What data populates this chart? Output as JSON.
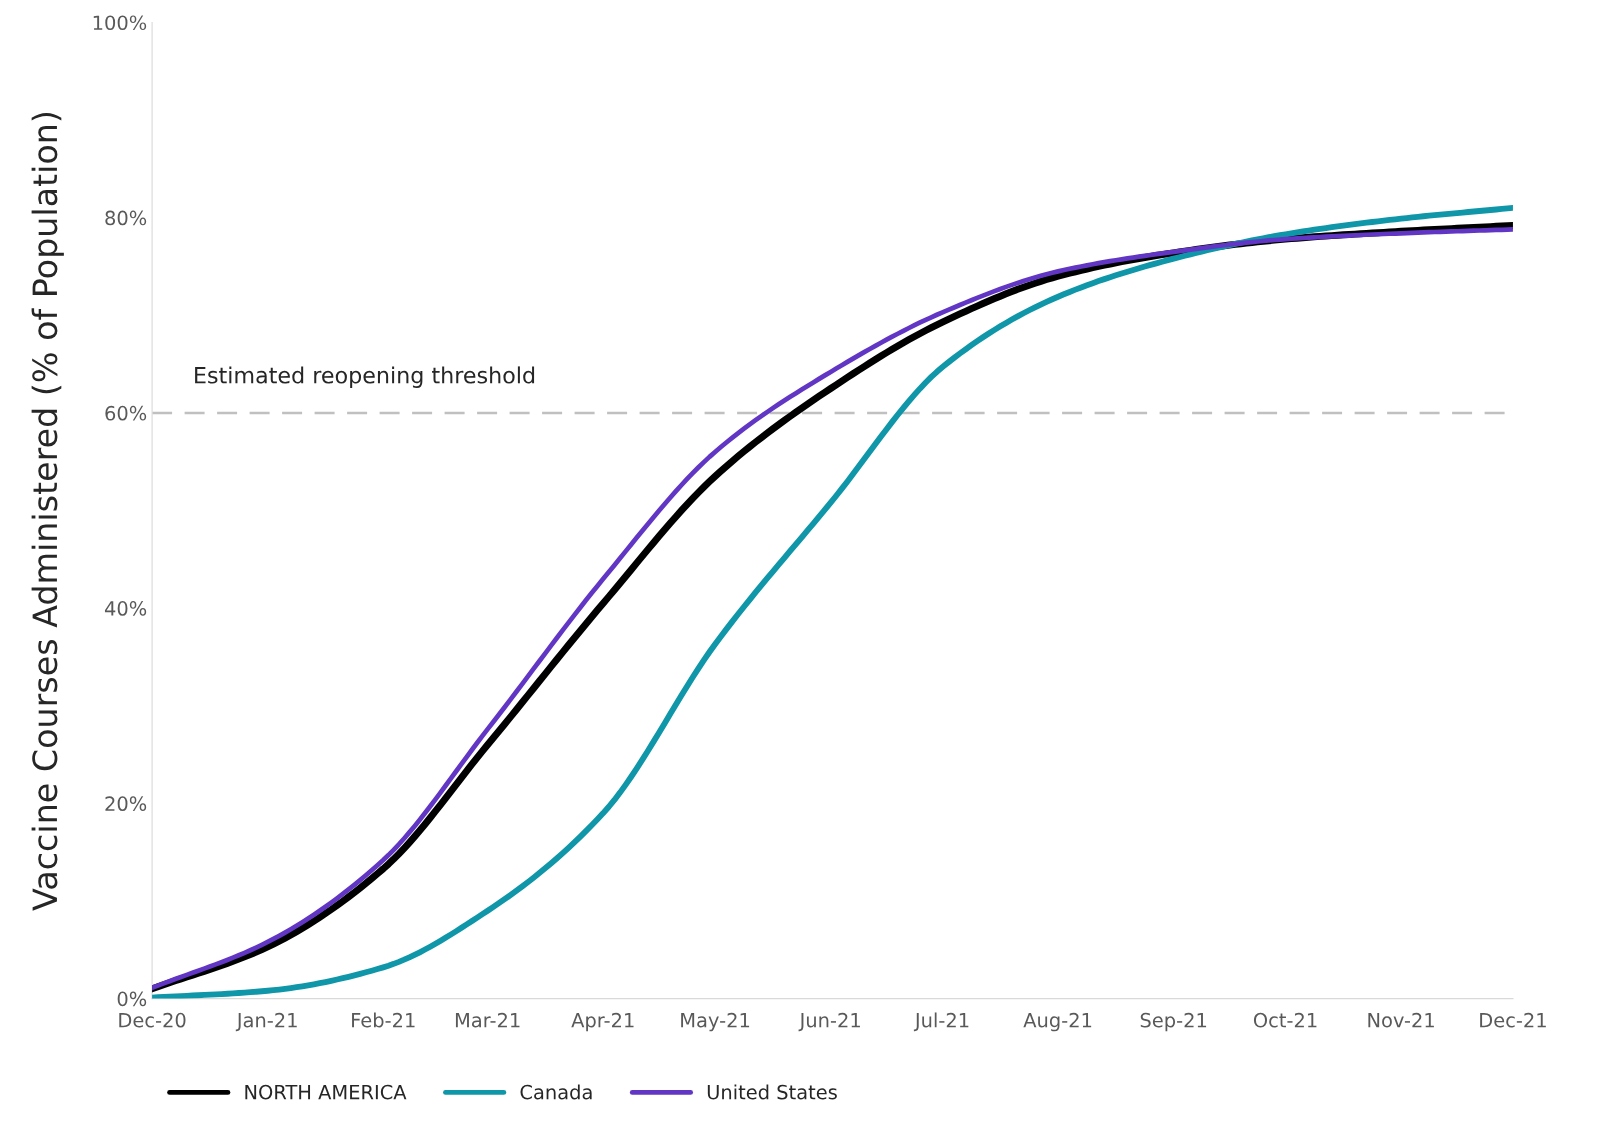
{
  "chart_data": {
    "type": "line",
    "ylabel": "Vaccine Courses Administered (% of Population)",
    "x": [
      "2020-12-01",
      "2021-01-01",
      "2021-02-01",
      "2021-03-01",
      "2021-04-01",
      "2021-05-01",
      "2021-06-01",
      "2021-07-01",
      "2021-08-01",
      "2021-09-01",
      "2021-10-01",
      "2021-11-01",
      "2021-12-01"
    ],
    "series": [
      {
        "name": "NORTH AMERICA",
        "color": "#000000",
        "values": [
          1.0,
          5.3,
          13.3,
          26,
          40.5,
          53.5,
          62.5,
          69.3,
          74,
          76.4,
          77.8,
          78.6,
          79.2
        ]
      },
      {
        "name": "Canada",
        "color": "#0f96a8",
        "values": [
          0.1,
          0.8,
          3.2,
          9,
          19,
          36.3,
          50.8,
          64.7,
          71.9,
          75.8,
          78.3,
          79.9,
          81
        ]
      },
      {
        "name": "United States",
        "color": "#6236c4",
        "values": [
          1.1,
          5.8,
          14.2,
          27.6,
          43,
          56,
          64.2,
          70.3,
          74.5,
          76.5,
          77.8,
          78.4,
          78.8
        ]
      }
    ],
    "xlim": [
      "2020-12-01",
      "2021-12-01"
    ],
    "xticks": [
      {
        "value": "2020-12-01",
        "label": "Dec-20"
      },
      {
        "value": "2021-01-01",
        "label": "Jan-21"
      },
      {
        "value": "2021-02-01",
        "label": "Feb-21"
      },
      {
        "value": "2021-03-01",
        "label": "Mar-21"
      },
      {
        "value": "2021-04-01",
        "label": "Apr-21"
      },
      {
        "value": "2021-05-01",
        "label": "May-21"
      },
      {
        "value": "2021-06-01",
        "label": "Jun-21"
      },
      {
        "value": "2021-07-01",
        "label": "Jul-21"
      },
      {
        "value": "2021-08-01",
        "label": "Aug-21"
      },
      {
        "value": "2021-09-01",
        "label": "Sep-21"
      },
      {
        "value": "2021-10-01",
        "label": "Oct-21"
      },
      {
        "value": "2021-11-01",
        "label": "Nov-21"
      },
      {
        "value": "2021-12-01",
        "label": "Dec-21"
      }
    ],
    "ylim": [
      0,
      100
    ],
    "yticks": [
      {
        "value": 0,
        "label": "0%"
      },
      {
        "value": 20,
        "label": "20%"
      },
      {
        "value": 40,
        "label": "40%"
      },
      {
        "value": 60,
        "label": "60%"
      },
      {
        "value": 80,
        "label": "80%"
      },
      {
        "value": 100,
        "label": "100%"
      }
    ],
    "ref_lines": [
      {
        "axis": "y",
        "value": 60,
        "label": "Estimated reopening threshold",
        "color": "#c0c0c0",
        "line_style": "dashed"
      }
    ],
    "grid": false,
    "legend": "bottom left",
    "marker": "none",
    "line_style": "solid"
  }
}
